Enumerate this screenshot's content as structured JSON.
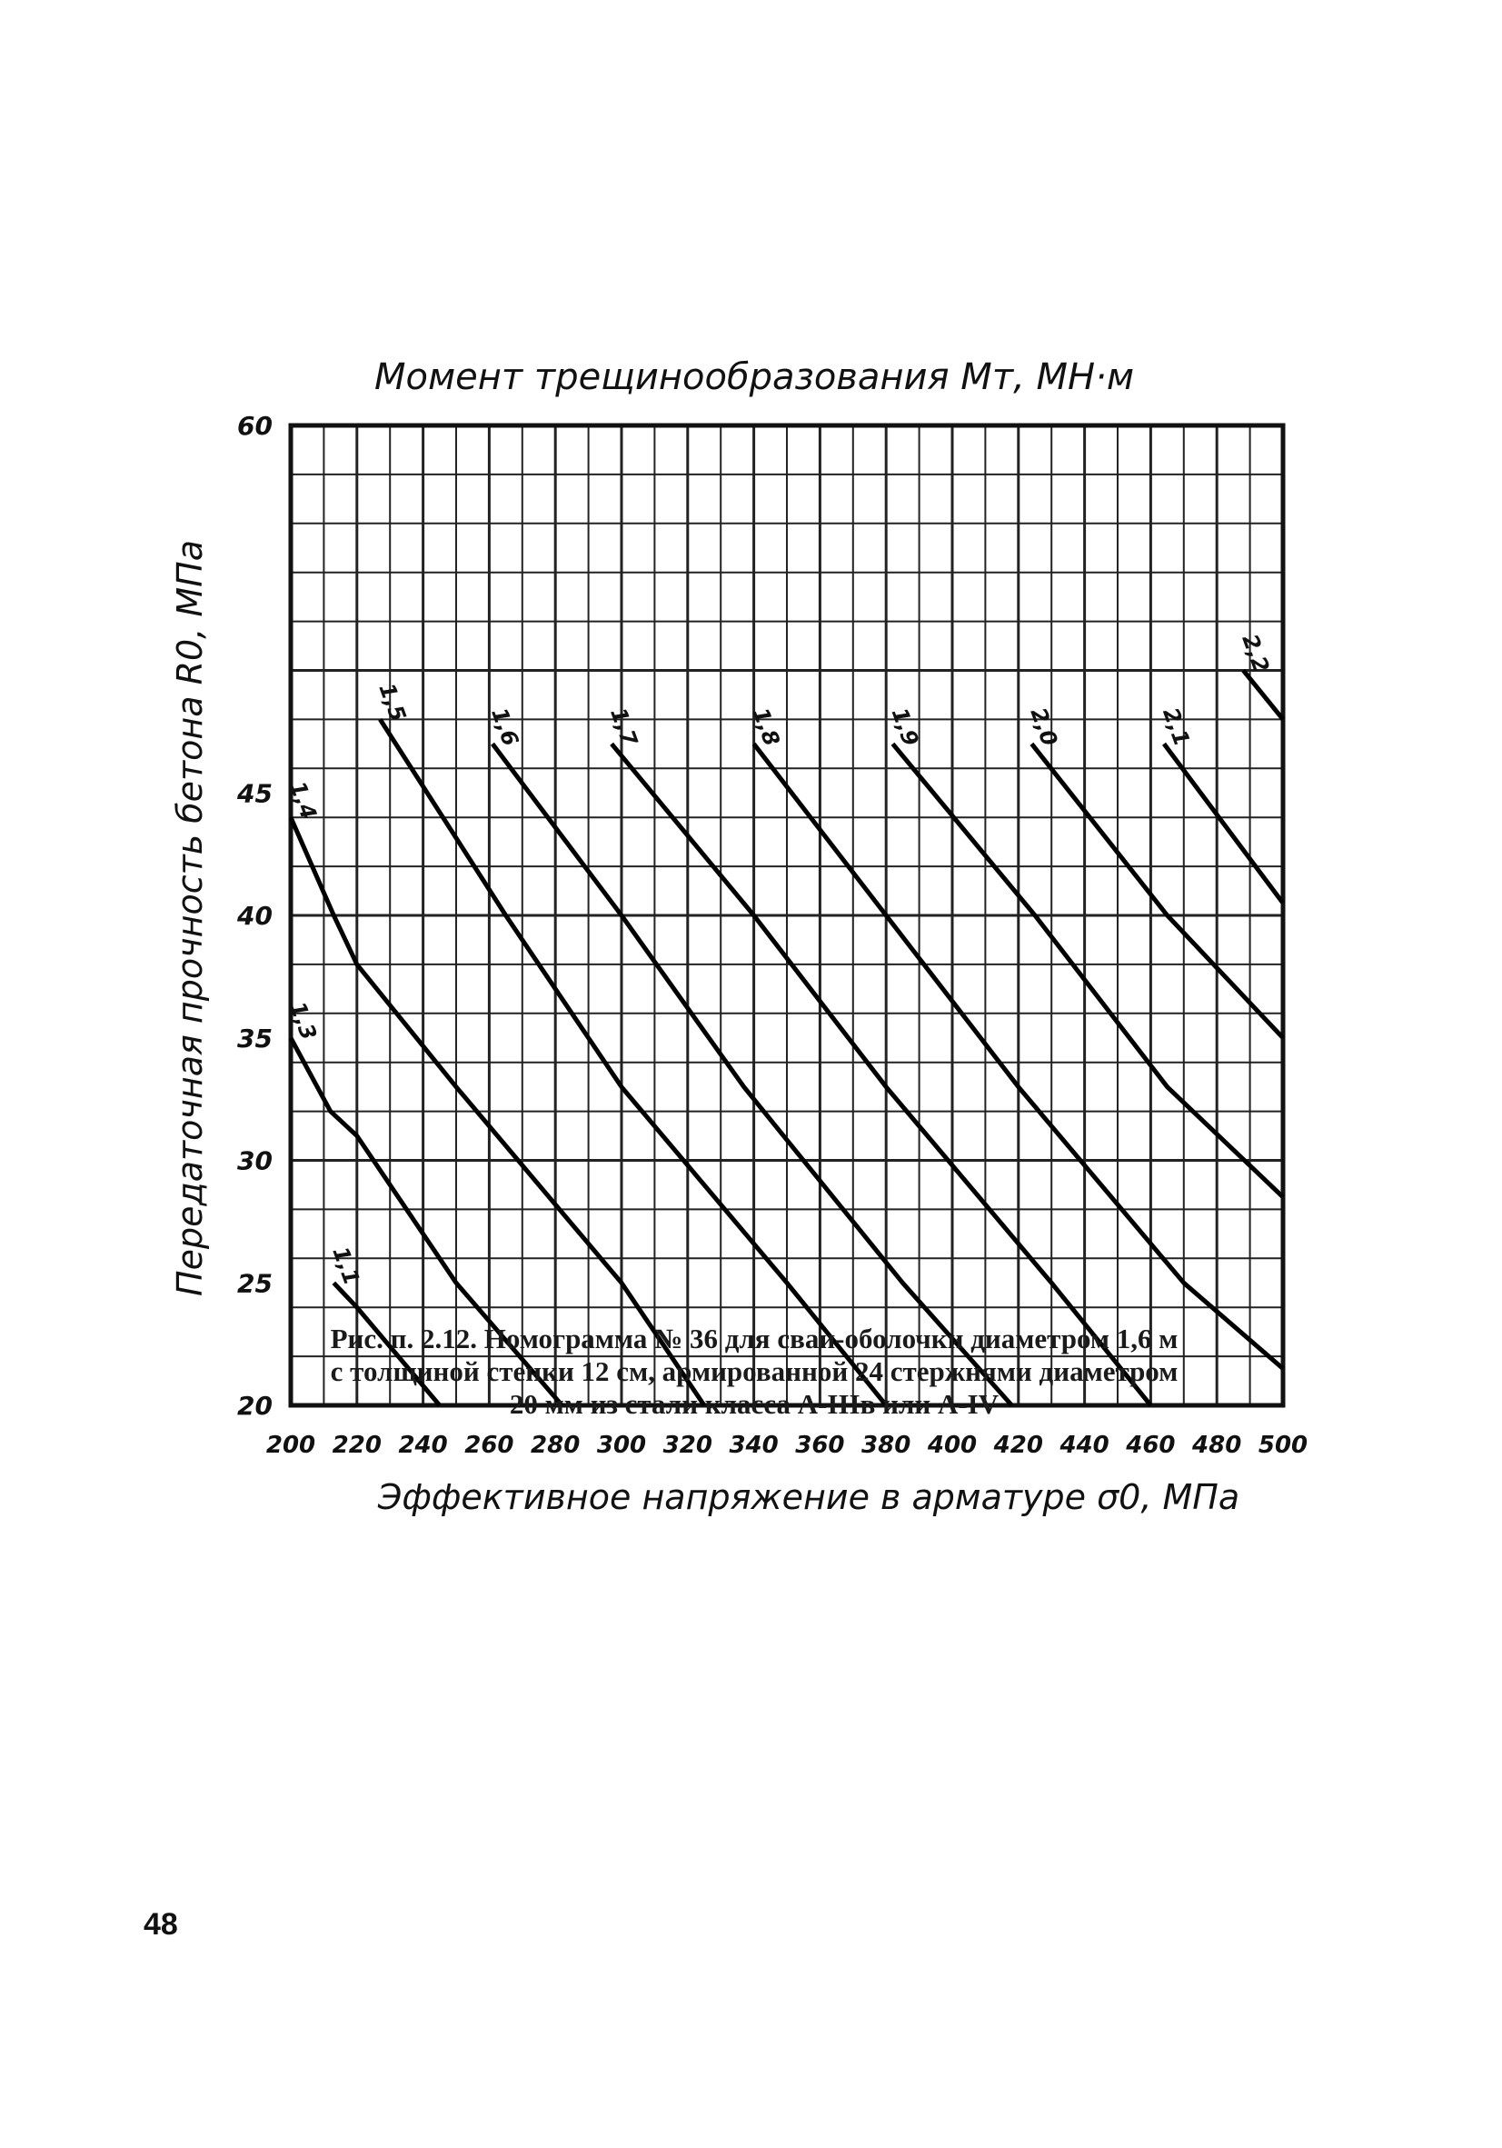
{
  "chart_data": {
    "type": "line",
    "title": "Момент трещинообразования Mт, МН·м",
    "xlabel": "Эффективное напряжение в арматуре σ0, МПа",
    "ylabel": "Передаточная прочность бетона R0, МПа",
    "xlim": [
      200,
      500
    ],
    "ylim": [
      20,
      60
    ],
    "x_ticks": [
      "200",
      "220",
      "240",
      "260",
      "280",
      "300",
      "320",
      "340",
      "360",
      "380",
      "400",
      "420",
      "440",
      "460",
      "480",
      "500"
    ],
    "y_ticks": [
      "20",
      "25",
      "30",
      "35",
      "40",
      "45",
      "60"
    ],
    "grid": true,
    "series": [
      {
        "name": "1,1",
        "points": [
          [
            213,
            25
          ],
          [
            220,
            24
          ],
          [
            245,
            20
          ]
        ]
      },
      {
        "name": "1,3",
        "points": [
          [
            200,
            35
          ],
          [
            212,
            32
          ],
          [
            220,
            31
          ],
          [
            250,
            25
          ],
          [
            282,
            20
          ]
        ]
      },
      {
        "name": "1,4",
        "points": [
          [
            200,
            44
          ],
          [
            213,
            40
          ],
          [
            220,
            38
          ],
          [
            250,
            33
          ],
          [
            300,
            25
          ],
          [
            325,
            20
          ]
        ]
      },
      {
        "name": "1,5",
        "points": [
          [
            227,
            48
          ],
          [
            265,
            40
          ],
          [
            300,
            33
          ],
          [
            350,
            25
          ],
          [
            380,
            20
          ]
        ]
      },
      {
        "name": "1,6",
        "points": [
          [
            261,
            47
          ],
          [
            300,
            40
          ],
          [
            337,
            33
          ],
          [
            385,
            25
          ],
          [
            418,
            20
          ]
        ]
      },
      {
        "name": "1,7",
        "points": [
          [
            297,
            47
          ],
          [
            340,
            40
          ],
          [
            380,
            33
          ],
          [
            430,
            25
          ],
          [
            460,
            20
          ]
        ]
      },
      {
        "name": "1,8",
        "points": [
          [
            340,
            47
          ],
          [
            380,
            40
          ],
          [
            420,
            33
          ],
          [
            470,
            25
          ],
          [
            500,
            21.5
          ]
        ]
      },
      {
        "name": "1,9",
        "points": [
          [
            382,
            47
          ],
          [
            425,
            40
          ],
          [
            465,
            33
          ],
          [
            500,
            28.5
          ]
        ]
      },
      {
        "name": "2,0",
        "points": [
          [
            424,
            47
          ],
          [
            465,
            40
          ],
          [
            500,
            35
          ]
        ]
      },
      {
        "name": "2,1",
        "points": [
          [
            464,
            47
          ],
          [
            500,
            40.5
          ]
        ]
      },
      {
        "name": "2,2",
        "points": [
          [
            488,
            50
          ],
          [
            500,
            48
          ]
        ]
      }
    ]
  },
  "caption": {
    "line1": "Рис. п. 2.12. Номограмма № 36 для сваи-оболочки диаметром 1,6 м",
    "line2": "с толщиной стенки 12 см, армированной 24 стержнями диаметром",
    "line3": "20 мм из стали класса A-IIIв или A-IV"
  },
  "page_number": "48"
}
